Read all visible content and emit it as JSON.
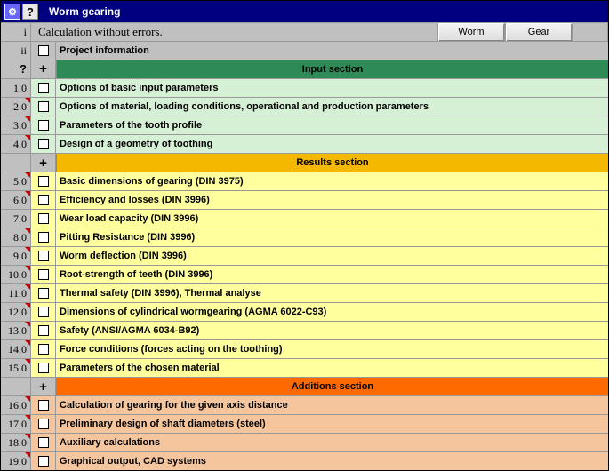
{
  "titlebar": {
    "help": "?",
    "title": "Worm gearing"
  },
  "status": {
    "num": "i",
    "text": "Calculation without errors.",
    "btn1": "Worm",
    "btn2": "Gear"
  },
  "project": {
    "num": "ii",
    "text": "Project information"
  },
  "colors": {
    "input_hdr_bg": "#2e8b57",
    "input_hdr_fg": "#000000",
    "input_row_bg": "#d6f0d6",
    "results_hdr_bg": "#f5b800",
    "results_row_bg": "#ffff9e",
    "add_hdr_bg": "#ff6a00",
    "add_row_bg": "#f5c69e",
    "gray": "#c0c0c0"
  },
  "sections": [
    {
      "key": "input",
      "q": "?",
      "plus": "+",
      "title": "Input section",
      "rows": [
        {
          "n": "1.0",
          "t": "Options of basic input parameters",
          "red": false
        },
        {
          "n": "2.0",
          "t": "Options of material, loading conditions, operational and production parameters",
          "red": true
        },
        {
          "n": "3.0",
          "t": "Parameters of the tooth profile",
          "red": true
        },
        {
          "n": "4.0",
          "t": "Design of a geometry of toothing",
          "red": true
        }
      ]
    },
    {
      "key": "results",
      "q": "",
      "plus": "+",
      "title": "Results section",
      "rows": [
        {
          "n": "5.0",
          "t": "Basic dimensions of gearing (DIN 3975)",
          "red": true
        },
        {
          "n": "6.0",
          "t": "Efficiency and losses (DIN 3996)",
          "red": true
        },
        {
          "n": "7.0",
          "t": "Wear load capacity (DIN 3996)",
          "red": false
        },
        {
          "n": "8.0",
          "t": "Pitting Resistance (DIN 3996)",
          "red": true
        },
        {
          "n": "9.0",
          "t": "Worm deflection (DIN 3996)",
          "red": true
        },
        {
          "n": "10.0",
          "t": "Root-strength of teeth (DIN 3996)",
          "red": true
        },
        {
          "n": "11.0",
          "t": "Thermal safety (DIN 3996), Thermal analyse",
          "red": true
        },
        {
          "n": "12.0",
          "t": "Dimensions of cylindrical wormgearing (AGMA 6022-C93)",
          "red": true
        },
        {
          "n": "13.0",
          "t": "Safety (ANSI/AGMA 6034-B92)",
          "red": true
        },
        {
          "n": "14.0",
          "t": "Force conditions (forces acting on the toothing)",
          "red": true
        },
        {
          "n": "15.0",
          "t": "Parameters of the chosen material",
          "red": true
        }
      ]
    },
    {
      "key": "add",
      "q": "",
      "plus": "+",
      "title": "Additions section",
      "rows": [
        {
          "n": "16.0",
          "t": "Calculation of gearing for the given axis distance",
          "red": true
        },
        {
          "n": "17.0",
          "t": "Preliminary design of shaft diameters (steel)",
          "red": true
        },
        {
          "n": "18.0",
          "t": "Auxiliary calculations",
          "red": true
        },
        {
          "n": "19.0",
          "t": "Graphical output, CAD systems",
          "red": true
        }
      ]
    }
  ]
}
